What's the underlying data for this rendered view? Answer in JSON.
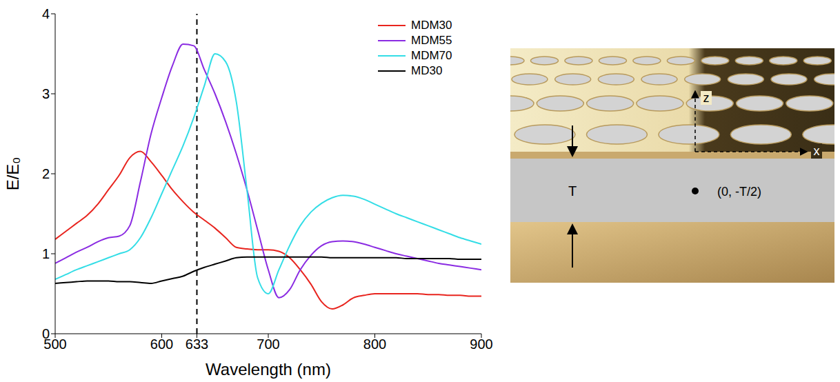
{
  "chart_data": {
    "type": "line",
    "x_label": "Wavelength (nm)",
    "y_label": "E/E₀",
    "xlim": [
      500,
      900
    ],
    "xticks": [
      500,
      600,
      633,
      700,
      800,
      900
    ],
    "ylim": [
      0,
      4
    ],
    "yticks": [
      0,
      1,
      2,
      3,
      4
    ],
    "grid": false,
    "legend": "top-right",
    "vlines": [
      {
        "x": 633,
        "line_style": "dashed",
        "color": "#000000"
      }
    ],
    "x": [
      500,
      510,
      520,
      530,
      540,
      550,
      560,
      570,
      580,
      590,
      600,
      610,
      620,
      630,
      640,
      650,
      660,
      670,
      680,
      690,
      700,
      710,
      720,
      730,
      740,
      750,
      760,
      770,
      780,
      790,
      800,
      810,
      820,
      830,
      840,
      850,
      860,
      870,
      880,
      890,
      900
    ],
    "series": [
      {
        "name": "MDM30",
        "color": "#e8241e",
        "values": [
          1.18,
          1.28,
          1.38,
          1.48,
          1.62,
          1.8,
          1.98,
          2.2,
          2.28,
          2.15,
          1.98,
          1.8,
          1.65,
          1.52,
          1.42,
          1.32,
          1.2,
          1.08,
          1.06,
          1.05,
          1.05,
          1.03,
          0.95,
          0.8,
          0.62,
          0.4,
          0.31,
          0.36,
          0.45,
          0.48,
          0.5,
          0.5,
          0.5,
          0.5,
          0.5,
          0.49,
          0.49,
          0.48,
          0.48,
          0.47,
          0.47
        ]
      },
      {
        "name": "MDM55",
        "color": "#8a2be2",
        "values": [
          0.88,
          0.95,
          1.02,
          1.08,
          1.15,
          1.2,
          1.22,
          1.35,
          1.9,
          2.5,
          2.95,
          3.35,
          3.62,
          3.6,
          3.3,
          3.0,
          2.65,
          2.25,
          1.8,
          1.3,
          0.8,
          0.45,
          0.55,
          0.8,
          0.98,
          1.1,
          1.15,
          1.16,
          1.15,
          1.12,
          1.08,
          1.04,
          1.0,
          0.97,
          0.94,
          0.91,
          0.88,
          0.86,
          0.84,
          0.82,
          0.8
        ]
      },
      {
        "name": "MDM70",
        "color": "#33dde6",
        "values": [
          0.68,
          0.74,
          0.8,
          0.85,
          0.9,
          0.95,
          1.0,
          1.05,
          1.2,
          1.45,
          1.75,
          2.05,
          2.35,
          2.7,
          3.1,
          3.5,
          3.4,
          2.9,
          1.8,
          0.7,
          0.5,
          0.8,
          1.1,
          1.35,
          1.52,
          1.63,
          1.7,
          1.73,
          1.72,
          1.68,
          1.62,
          1.56,
          1.5,
          1.45,
          1.4,
          1.35,
          1.3,
          1.25,
          1.2,
          1.16,
          1.12
        ]
      },
      {
        "name": "MD30",
        "color": "#000000",
        "values": [
          0.63,
          0.64,
          0.65,
          0.66,
          0.66,
          0.66,
          0.65,
          0.65,
          0.64,
          0.63,
          0.66,
          0.69,
          0.72,
          0.78,
          0.83,
          0.87,
          0.91,
          0.95,
          0.96,
          0.96,
          0.96,
          0.96,
          0.96,
          0.96,
          0.96,
          0.96,
          0.95,
          0.95,
          0.95,
          0.95,
          0.95,
          0.95,
          0.95,
          0.94,
          0.94,
          0.94,
          0.94,
          0.94,
          0.93,
          0.93,
          0.93
        ]
      }
    ]
  },
  "diagram": {
    "labels": {
      "thickness": "T",
      "point": "(0, -T/2)",
      "z_axis": "z",
      "x_axis": "x"
    }
  }
}
